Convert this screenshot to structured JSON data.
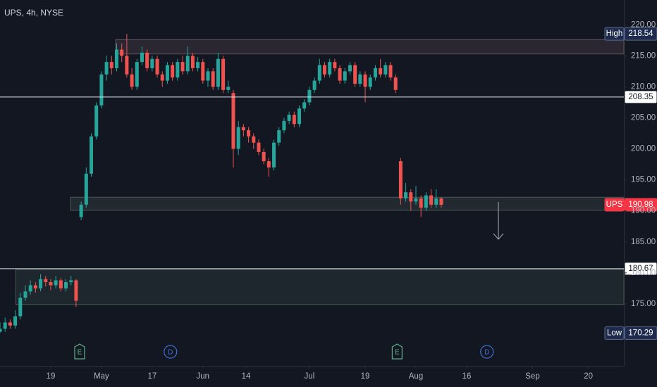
{
  "chart_data": {
    "type": "candlestick",
    "title": "UPS, 4h, NYSE",
    "up_color": "#26a69a",
    "down_color": "#ef5350",
    "grid": false,
    "xlim": [
      -10,
      113
    ],
    "xticks": [
      {
        "value": 0,
        "label": "19"
      },
      {
        "value": 10,
        "label": "May"
      },
      {
        "value": 20,
        "label": "17"
      },
      {
        "value": 30,
        "label": "Jun"
      },
      {
        "value": 38.5,
        "label": "14"
      },
      {
        "value": 51,
        "label": "Jul"
      },
      {
        "value": 62,
        "label": "19"
      },
      {
        "value": 72,
        "label": "Aug"
      },
      {
        "value": 82,
        "label": "16"
      },
      {
        "value": 95,
        "label": "Sep"
      },
      {
        "value": 106,
        "label": "20"
      }
    ],
    "ylim": [
      165,
      224
    ],
    "yticks": [
      {
        "value": 175,
        "label": "175.00"
      },
      {
        "value": 180,
        "label": "180.00"
      },
      {
        "value": 185,
        "label": "185.00"
      },
      {
        "value": 190,
        "label": "190.00"
      },
      {
        "value": 195,
        "label": "195.00"
      },
      {
        "value": 200,
        "label": "200.00"
      },
      {
        "value": 205,
        "label": "205.00"
      },
      {
        "value": 210,
        "label": "210.00"
      },
      {
        "value": 215,
        "label": "215.00"
      },
      {
        "value": 220,
        "label": "220.00"
      }
    ],
    "candles": [
      [
        170.5,
        172,
        170.29,
        171
      ],
      [
        171,
        172.8,
        170.5,
        172
      ],
      [
        172,
        172.5,
        171,
        171.5
      ],
      [
        171.5,
        174,
        171,
        173
      ],
      [
        173,
        176.8,
        172.5,
        176
      ],
      [
        176,
        178,
        175.5,
        177
      ],
      [
        177,
        178.8,
        176.5,
        178
      ],
      [
        178,
        178.5,
        176.8,
        177.5
      ],
      [
        177.5,
        179.8,
        177,
        179
      ],
      [
        179,
        179.5,
        177.8,
        178.5
      ],
      [
        178.5,
        179,
        177.2,
        178
      ],
      [
        178,
        179.5,
        177.5,
        178.8
      ],
      [
        178.8,
        179.2,
        177,
        177.5
      ],
      [
        177.5,
        179,
        177,
        178.5
      ],
      [
        178.5,
        179.5,
        178,
        178.8
      ],
      [
        178.8,
        179,
        174.5,
        175.5
      ],
      [
        189,
        191.5,
        188.5,
        191
      ],
      [
        191,
        197,
        190.5,
        196
      ],
      [
        196,
        202.5,
        195.5,
        202
      ],
      [
        202,
        207.5,
        201.5,
        207
      ],
      [
        207,
        212.5,
        206.5,
        212
      ],
      [
        212,
        215,
        211,
        214
      ],
      [
        214,
        215,
        212,
        213
      ],
      [
        213,
        217,
        212.5,
        216
      ],
      [
        216,
        217,
        214,
        215
      ],
      [
        215,
        218.54,
        211.5,
        212
      ],
      [
        212,
        213,
        209.5,
        210
      ],
      [
        210,
        214.5,
        209.5,
        214
      ],
      [
        214,
        216.5,
        213.5,
        215.5
      ],
      [
        215.5,
        216,
        212.5,
        213
      ],
      [
        213,
        215,
        212.5,
        214.5
      ],
      [
        214.5,
        215,
        211.5,
        212
      ],
      [
        212,
        212.5,
        210,
        211
      ],
      [
        211,
        214,
        210.5,
        213.5
      ],
      [
        213.5,
        214,
        211,
        211.5
      ],
      [
        211.5,
        214.5,
        211,
        214
      ],
      [
        214,
        215,
        212,
        212.5
      ],
      [
        212.5,
        216.5,
        212,
        215
      ],
      [
        215,
        215.5,
        212.5,
        213
      ],
      [
        213,
        214.8,
        212.5,
        214
      ],
      [
        214,
        214.5,
        210.5,
        211
      ],
      [
        211,
        213,
        210,
        212.5
      ],
      [
        212.5,
        213,
        209.5,
        210
      ],
      [
        210,
        215.5,
        209.5,
        214.5
      ],
      [
        214.5,
        215,
        209,
        209.5
      ],
      [
        209.5,
        211,
        209,
        210
      ],
      [
        209,
        209.5,
        197,
        200
      ],
      [
        200,
        204.5,
        199,
        203.5
      ],
      [
        203.5,
        204,
        202,
        203
      ],
      [
        203,
        203.5,
        201,
        202
      ],
      [
        202,
        202.5,
        200,
        201
      ],
      [
        201,
        201.5,
        199,
        199.5
      ],
      [
        199.5,
        200,
        197.5,
        198
      ],
      [
        198,
        198.5,
        195.5,
        197
      ],
      [
        197,
        201.5,
        196.5,
        201
      ],
      [
        201,
        203.5,
        200.5,
        203
      ],
      [
        203,
        205,
        202.5,
        204.5
      ],
      [
        204.5,
        206,
        204,
        205.5
      ],
      [
        205.5,
        206,
        203.5,
        204
      ],
      [
        204,
        207,
        203.5,
        206.5
      ],
      [
        206.5,
        208,
        206,
        207.5
      ],
      [
        207.5,
        210,
        207,
        209.5
      ],
      [
        209.5,
        211.5,
        209,
        211
      ],
      [
        211,
        214.5,
        210.5,
        213.5
      ],
      [
        213.5,
        214,
        211.5,
        212
      ],
      [
        212,
        214.5,
        211.5,
        214
      ],
      [
        214,
        214.5,
        212.5,
        213
      ],
      [
        213,
        213.5,
        210.5,
        211
      ],
      [
        211,
        213,
        210.5,
        212.5
      ],
      [
        212.5,
        214,
        212,
        213.5
      ],
      [
        213.5,
        214,
        210,
        210.5
      ],
      [
        210.5,
        212.5,
        210,
        212
      ],
      [
        212,
        212.5,
        207.5,
        210
      ],
      [
        210,
        212,
        209.5,
        211.5
      ],
      [
        211.5,
        213.5,
        211,
        213
      ],
      [
        213,
        214.5,
        211.5,
        212
      ],
      [
        212,
        214,
        211.5,
        213.5
      ],
      [
        213.5,
        214,
        211,
        211.5
      ],
      [
        211.5,
        212,
        209,
        209.5
      ],
      [
        198,
        198.5,
        191,
        192
      ],
      [
        192,
        194.5,
        191.5,
        193
      ],
      [
        193,
        193.5,
        190,
        191.5
      ],
      [
        191.5,
        194,
        191,
        192
      ],
      [
        192,
        192.5,
        189,
        190.5
      ],
      [
        190.5,
        193,
        190,
        192.5
      ],
      [
        192.5,
        193.5,
        190.5,
        191
      ],
      [
        191,
        193.5,
        190.5,
        192
      ],
      [
        192,
        192.2,
        190.5,
        190.98
      ]
    ],
    "zones": [
      {
        "from": 215.3,
        "to": 217.6,
        "start": 12.8
      },
      {
        "from": 190.1,
        "to": 192.2,
        "start": 3.9
      },
      {
        "from": 174.9,
        "to": 180.55,
        "start": -6.9
      }
    ],
    "levels": [
      {
        "value": 208.35,
        "label": "208.35"
      },
      {
        "value": 180.67,
        "label": "180.67"
      }
    ],
    "price_tags": [
      {
        "name": "High",
        "value": 218.54,
        "label": "218.54",
        "kind": "extreme"
      },
      {
        "name": "UPS",
        "value": 190.98,
        "label": "190.98",
        "kind": "last"
      },
      {
        "name": "Low",
        "value": 170.29,
        "label": "170.29",
        "kind": "extreme"
      }
    ],
    "events": [
      {
        "label": "E",
        "x": 5.7
      },
      {
        "label": "D",
        "x": 23.6
      },
      {
        "label": "E",
        "x": 68.3
      },
      {
        "label": "D",
        "x": 86
      }
    ]
  }
}
